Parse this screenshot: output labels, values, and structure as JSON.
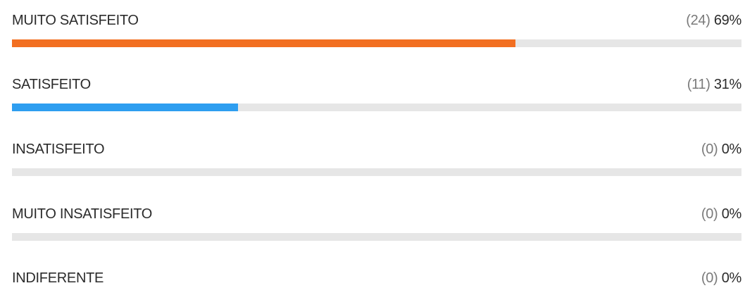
{
  "chart_data": {
    "type": "bar",
    "orientation": "horizontal",
    "categories": [
      "MUITO SATISFEITO",
      "SATISFEITO",
      "INSATISFEITO",
      "MUITO INSATISFEITO",
      "INDIFERENTE"
    ],
    "counts": [
      24,
      11,
      0,
      0,
      0
    ],
    "values": [
      69,
      31,
      0,
      0,
      0
    ],
    "count_labels": [
      "(24)",
      "(11)",
      "(0)",
      "(0)",
      "(0)"
    ],
    "value_labels": [
      "69%",
      "31%",
      "0%",
      "0%",
      "0%"
    ],
    "ylim": [
      0,
      100
    ],
    "colors": [
      "#f26f21",
      "#2e9ef0",
      "#e6e6e6",
      "#e6e6e6",
      "#e6e6e6"
    ],
    "track_color": "#e6e6e6",
    "grid": false,
    "legend": "none"
  }
}
